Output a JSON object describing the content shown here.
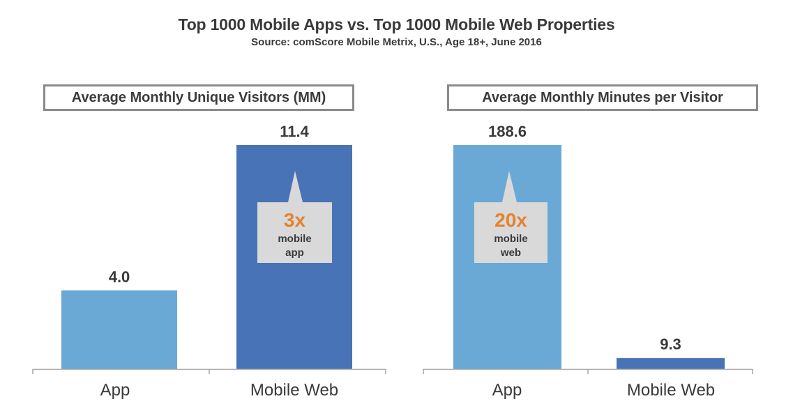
{
  "title": "Top 1000 Mobile Apps vs. Top 1000 Mobile Web Properties",
  "subtitle": "Source: comScore Mobile Metrix, U.S., Age 18+, June 2016",
  "colors": {
    "app": "#6aa9d5",
    "mobile_web": "#4873b7",
    "callout_bg": "#d9d9d9",
    "callout_accent": "#e4822e",
    "axis": "#a6a6a6",
    "text": "#3a3a3a"
  },
  "chart_data": [
    {
      "type": "bar",
      "title": "Average Monthly Unique Visitors (MM)",
      "categories": [
        "App",
        "Mobile Web"
      ],
      "values": [
        4.0,
        11.4
      ],
      "value_labels": [
        "4.0",
        "11.4"
      ],
      "xlabel": "",
      "ylabel": "",
      "ylim": [
        0,
        11.4
      ],
      "grid": false,
      "callout": {
        "target_index": 1,
        "multiplier": "3x",
        "line1": "mobile",
        "line2": "app"
      }
    },
    {
      "type": "bar",
      "title": "Average Monthly Minutes per Visitor",
      "categories": [
        "App",
        "Mobile Web"
      ],
      "values": [
        188.6,
        9.3
      ],
      "value_labels": [
        "188.6",
        "9.3"
      ],
      "xlabel": "",
      "ylabel": "",
      "ylim": [
        0,
        188.6
      ],
      "grid": false,
      "callout": {
        "target_index": 0,
        "multiplier": "20x",
        "line1": "mobile",
        "line2": "web"
      }
    }
  ]
}
